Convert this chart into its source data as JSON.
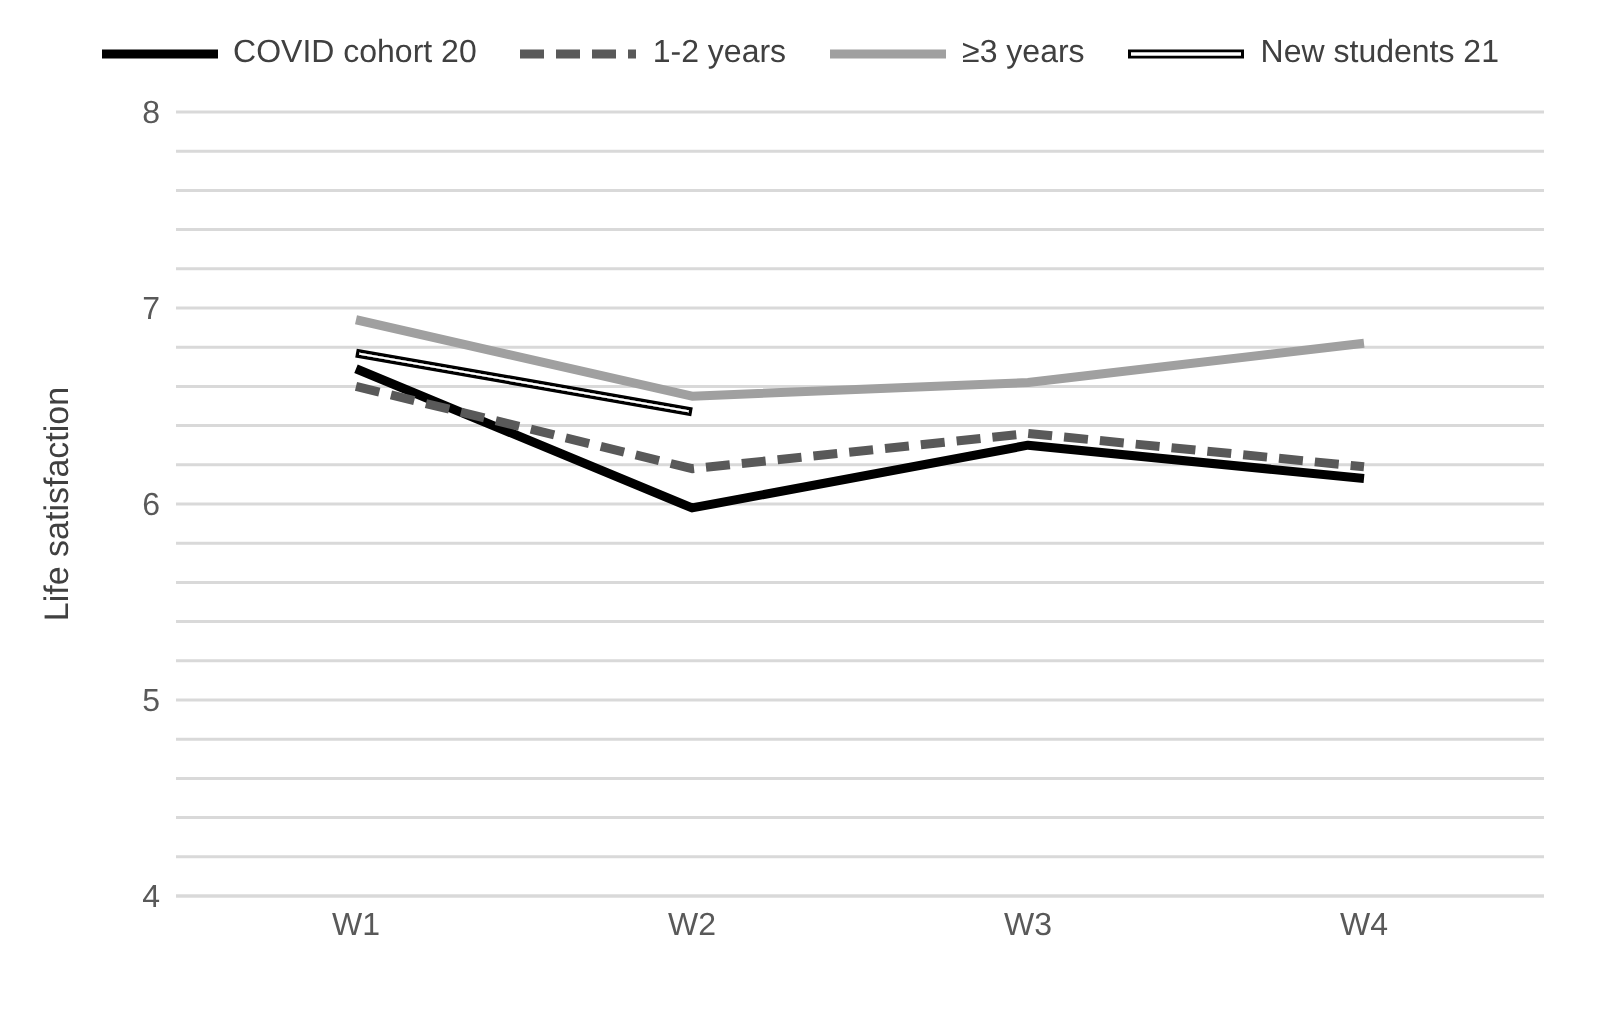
{
  "chart_data": {
    "type": "line",
    "ylabel": "Life satisfaction",
    "categories": [
      "W1",
      "W2",
      "W3",
      "W4"
    ],
    "series": [
      {
        "name": "COVID cohort 20",
        "color": "#000000",
        "line_style": "solid",
        "values": [
          6.69,
          5.98,
          6.3,
          6.13
        ]
      },
      {
        "name": "1-2 years",
        "color": "#595959",
        "line_style": "dashed",
        "values": [
          6.6,
          6.18,
          6.36,
          6.19
        ]
      },
      {
        "name": "≥3 years",
        "color": "#a0a0a0",
        "line_style": "solid",
        "values": [
          6.94,
          6.55,
          6.62,
          6.82
        ]
      },
      {
        "name": "New students 21",
        "color": "#000000",
        "line_style": "solid",
        "values": [
          6.77,
          6.47,
          null,
          null
        ]
      }
    ],
    "ylim": [
      4,
      8
    ],
    "yticks": [
      4,
      {
        "value": 4.2,
        "label": null
      },
      {
        "value": 4.4,
        "label": null
      },
      {
        "value": 4.6,
        "label": null
      },
      {
        "value": 4.8,
        "label": null
      },
      5,
      {
        "value": 5.2,
        "label": null
      },
      {
        "value": 5.4,
        "label": null
      },
      {
        "value": 5.6,
        "label": null
      },
      {
        "value": 5.8,
        "label": null
      },
      6,
      {
        "value": 6.2,
        "label": null
      },
      {
        "value": 6.4,
        "label": null
      },
      {
        "value": 6.6,
        "label": null
      },
      {
        "value": 6.8,
        "label": null
      },
      7,
      {
        "value": 7.2,
        "label": null
      },
      {
        "value": 7.4,
        "label": null
      },
      {
        "value": 7.6,
        "label": null
      },
      {
        "value": 7.8,
        "label": null
      },
      8
    ],
    "grid": "y",
    "legend": "top",
    "marker": "none"
  }
}
